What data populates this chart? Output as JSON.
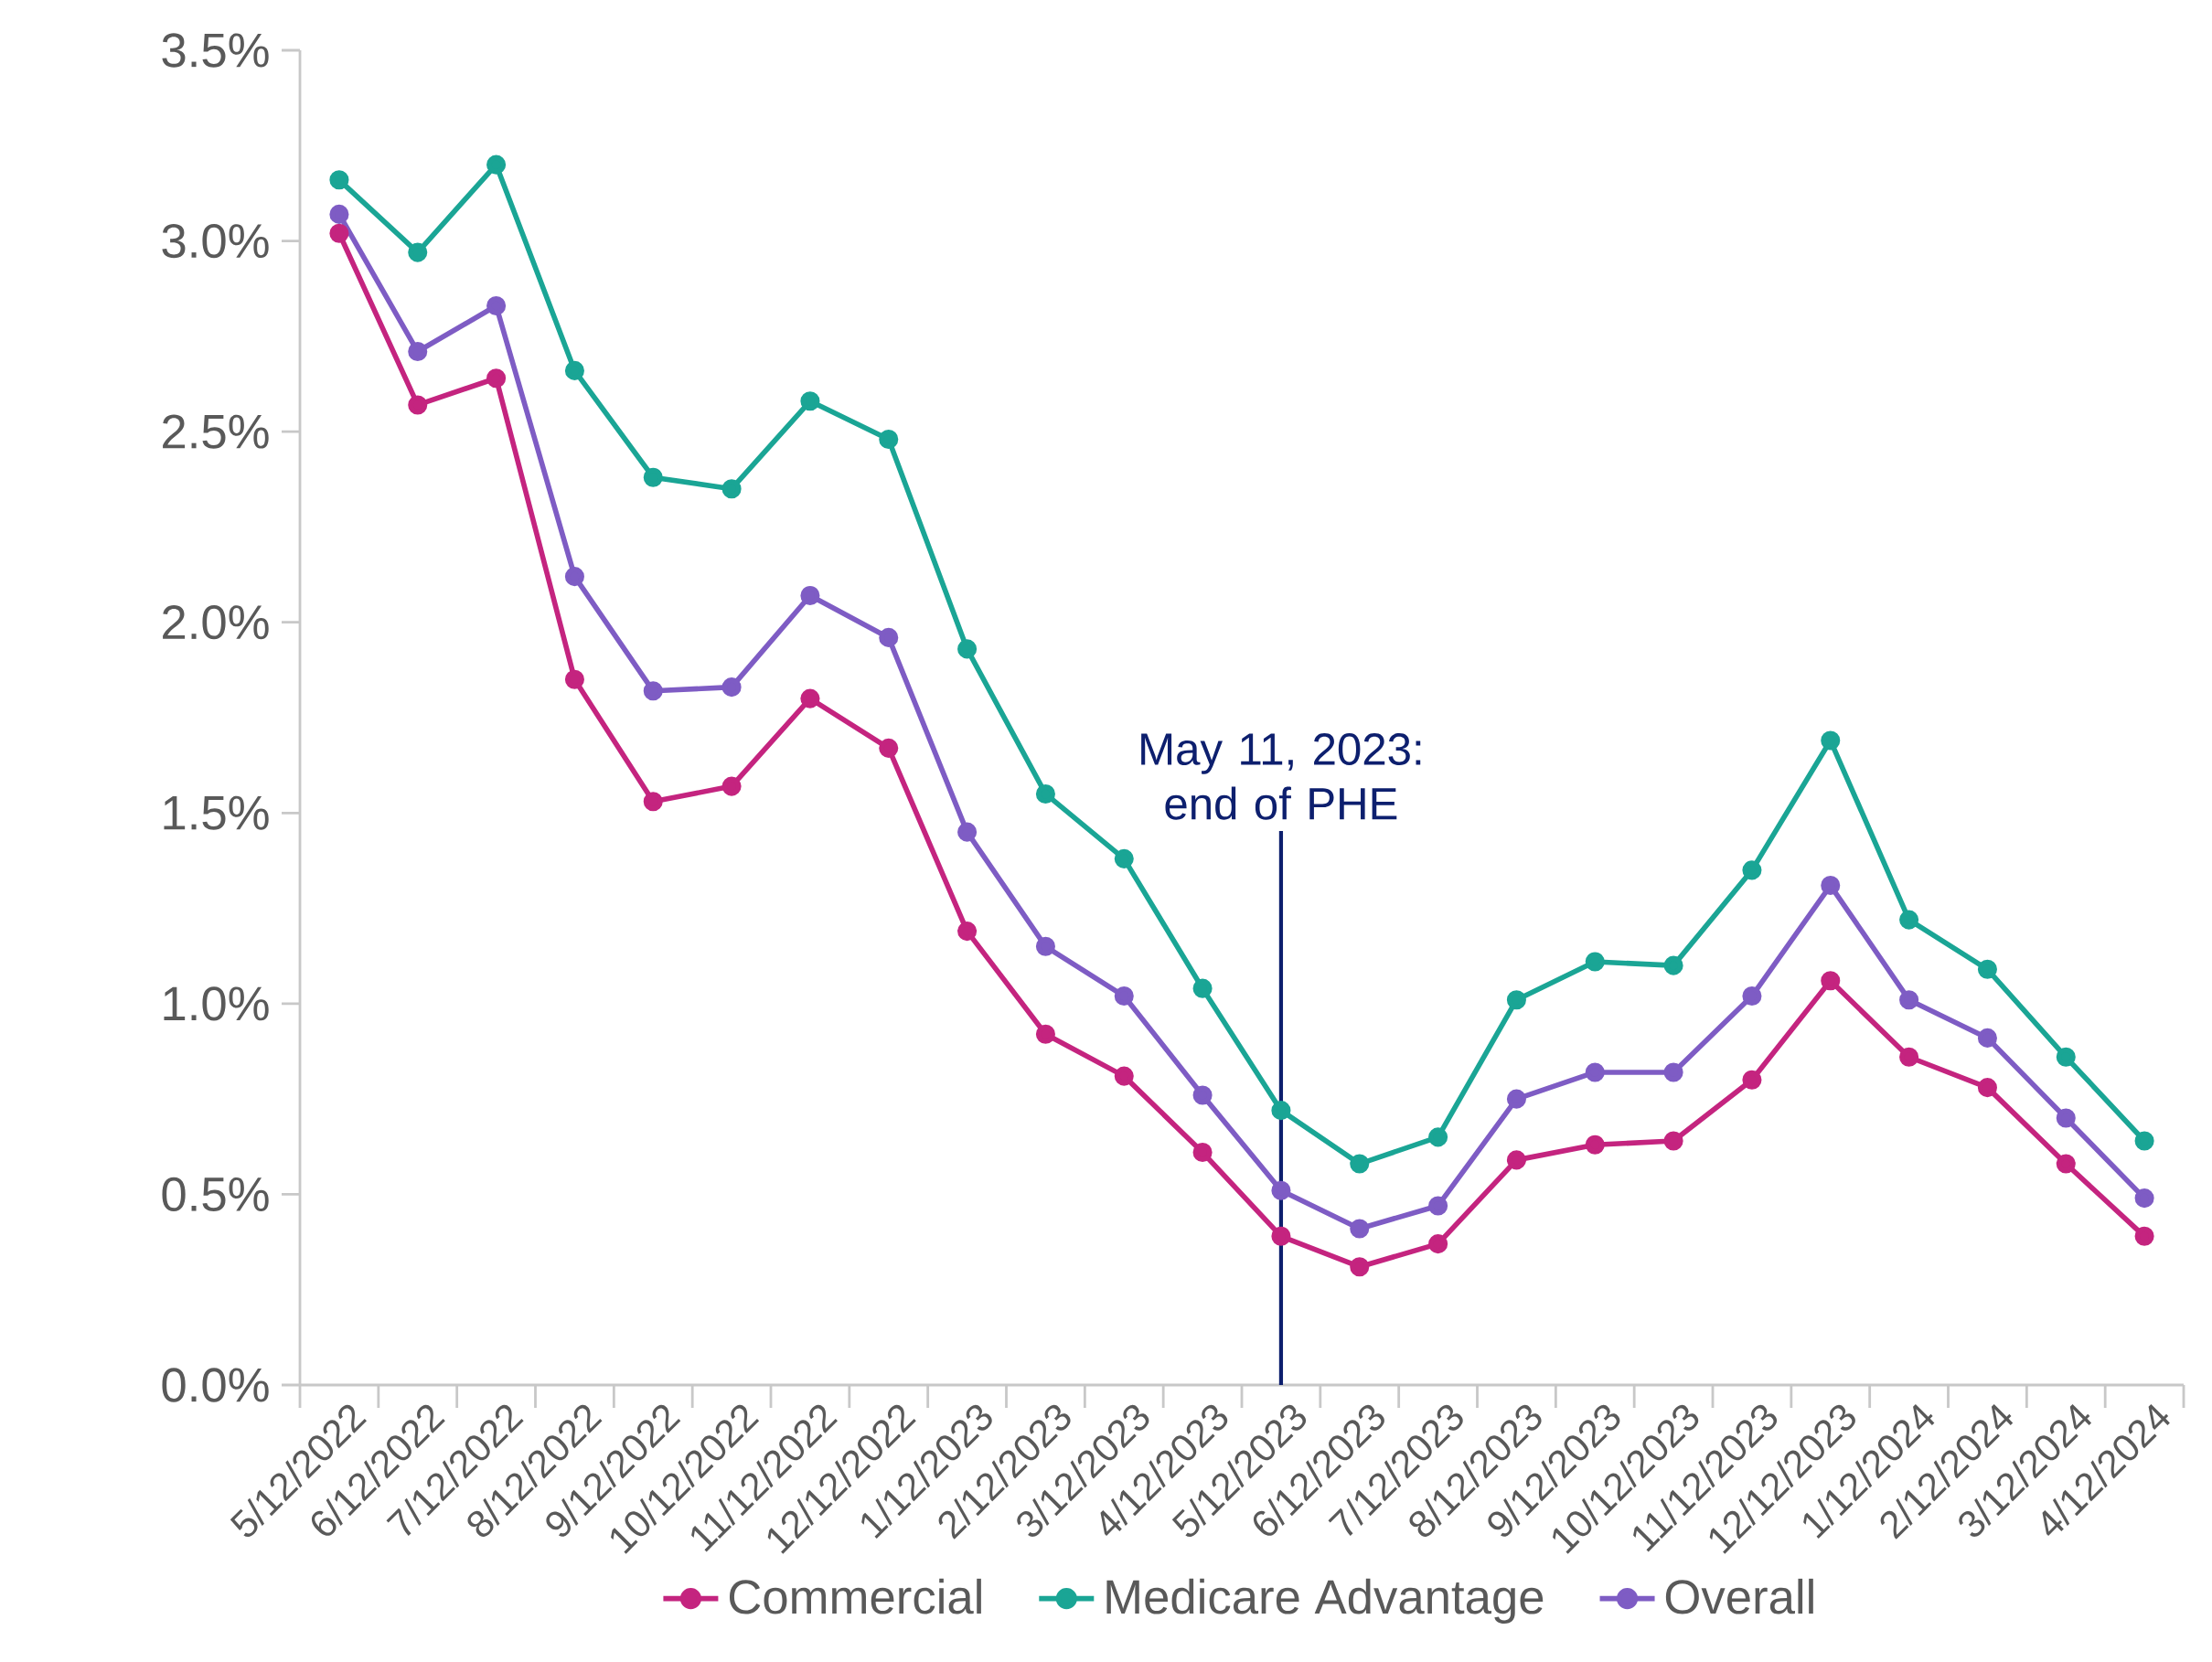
{
  "chart_data": {
    "type": "line",
    "categories": [
      "5/12/2022",
      "6/12/2022",
      "7/12/2022",
      "8/12/2022",
      "9/12/2022",
      "10/12/2022",
      "11/12/2022",
      "12/12/2022",
      "1/12/2023",
      "2/12/2023",
      "3/12/2023",
      "4/12/2023",
      "5/12/2023",
      "6/12/2023",
      "7/12/2023",
      "8/12/2023",
      "9/12/2023",
      "10/12/2023",
      "11/12/2023",
      "12/12/2023",
      "1/12/2024",
      "2/12/2024",
      "3/12/2024",
      "4/12/2024"
    ],
    "series": [
      {
        "name": "Commercial",
        "color": "#c4247f",
        "values": [
          3.02,
          2.57,
          2.64,
          1.85,
          1.53,
          1.57,
          1.8,
          1.67,
          1.19,
          0.92,
          0.81,
          0.61,
          0.39,
          0.31,
          0.37,
          0.59,
          0.63,
          0.64,
          0.8,
          1.06,
          0.86,
          0.78,
          0.58,
          0.39
        ]
      },
      {
        "name": "Medicare Advantage",
        "color": "#1aa595",
        "values": [
          3.16,
          2.97,
          3.2,
          2.66,
          2.38,
          2.35,
          2.58,
          2.48,
          1.93,
          1.55,
          1.38,
          1.04,
          0.72,
          0.58,
          0.65,
          1.01,
          1.11,
          1.1,
          1.35,
          1.69,
          1.22,
          1.09,
          0.86,
          0.64
        ]
      },
      {
        "name": "Overall",
        "color": "#7e5cc4",
        "values": [
          3.07,
          2.71,
          2.83,
          2.12,
          1.82,
          1.83,
          2.07,
          1.96,
          1.45,
          1.15,
          1.02,
          0.76,
          0.51,
          0.41,
          0.47,
          0.75,
          0.82,
          0.82,
          1.02,
          1.31,
          1.01,
          0.91,
          0.7,
          0.49
        ]
      }
    ],
    "ylim": [
      0,
      3.5
    ],
    "yticks": [
      {
        "value": 0,
        "label": "0.0%"
      },
      {
        "value": 0.5,
        "label": "0.5%"
      },
      {
        "value": 1,
        "label": "1.0%"
      },
      {
        "value": 1.5,
        "label": "1.5%"
      },
      {
        "value": 2,
        "label": "2.0%"
      },
      {
        "value": 2.5,
        "label": "2.5%"
      },
      {
        "value": 3,
        "label": "3.0%"
      },
      {
        "value": 3.5,
        "label": "3.5%"
      }
    ],
    "ref_lines": [
      {
        "axis": "x",
        "value": "5/12/2023",
        "label": "May 11, 2023: end of PHE",
        "color": "#0d1f6e"
      }
    ],
    "grid": false,
    "legend": "bottom",
    "marker": "circle",
    "line_style": "solid"
  }
}
